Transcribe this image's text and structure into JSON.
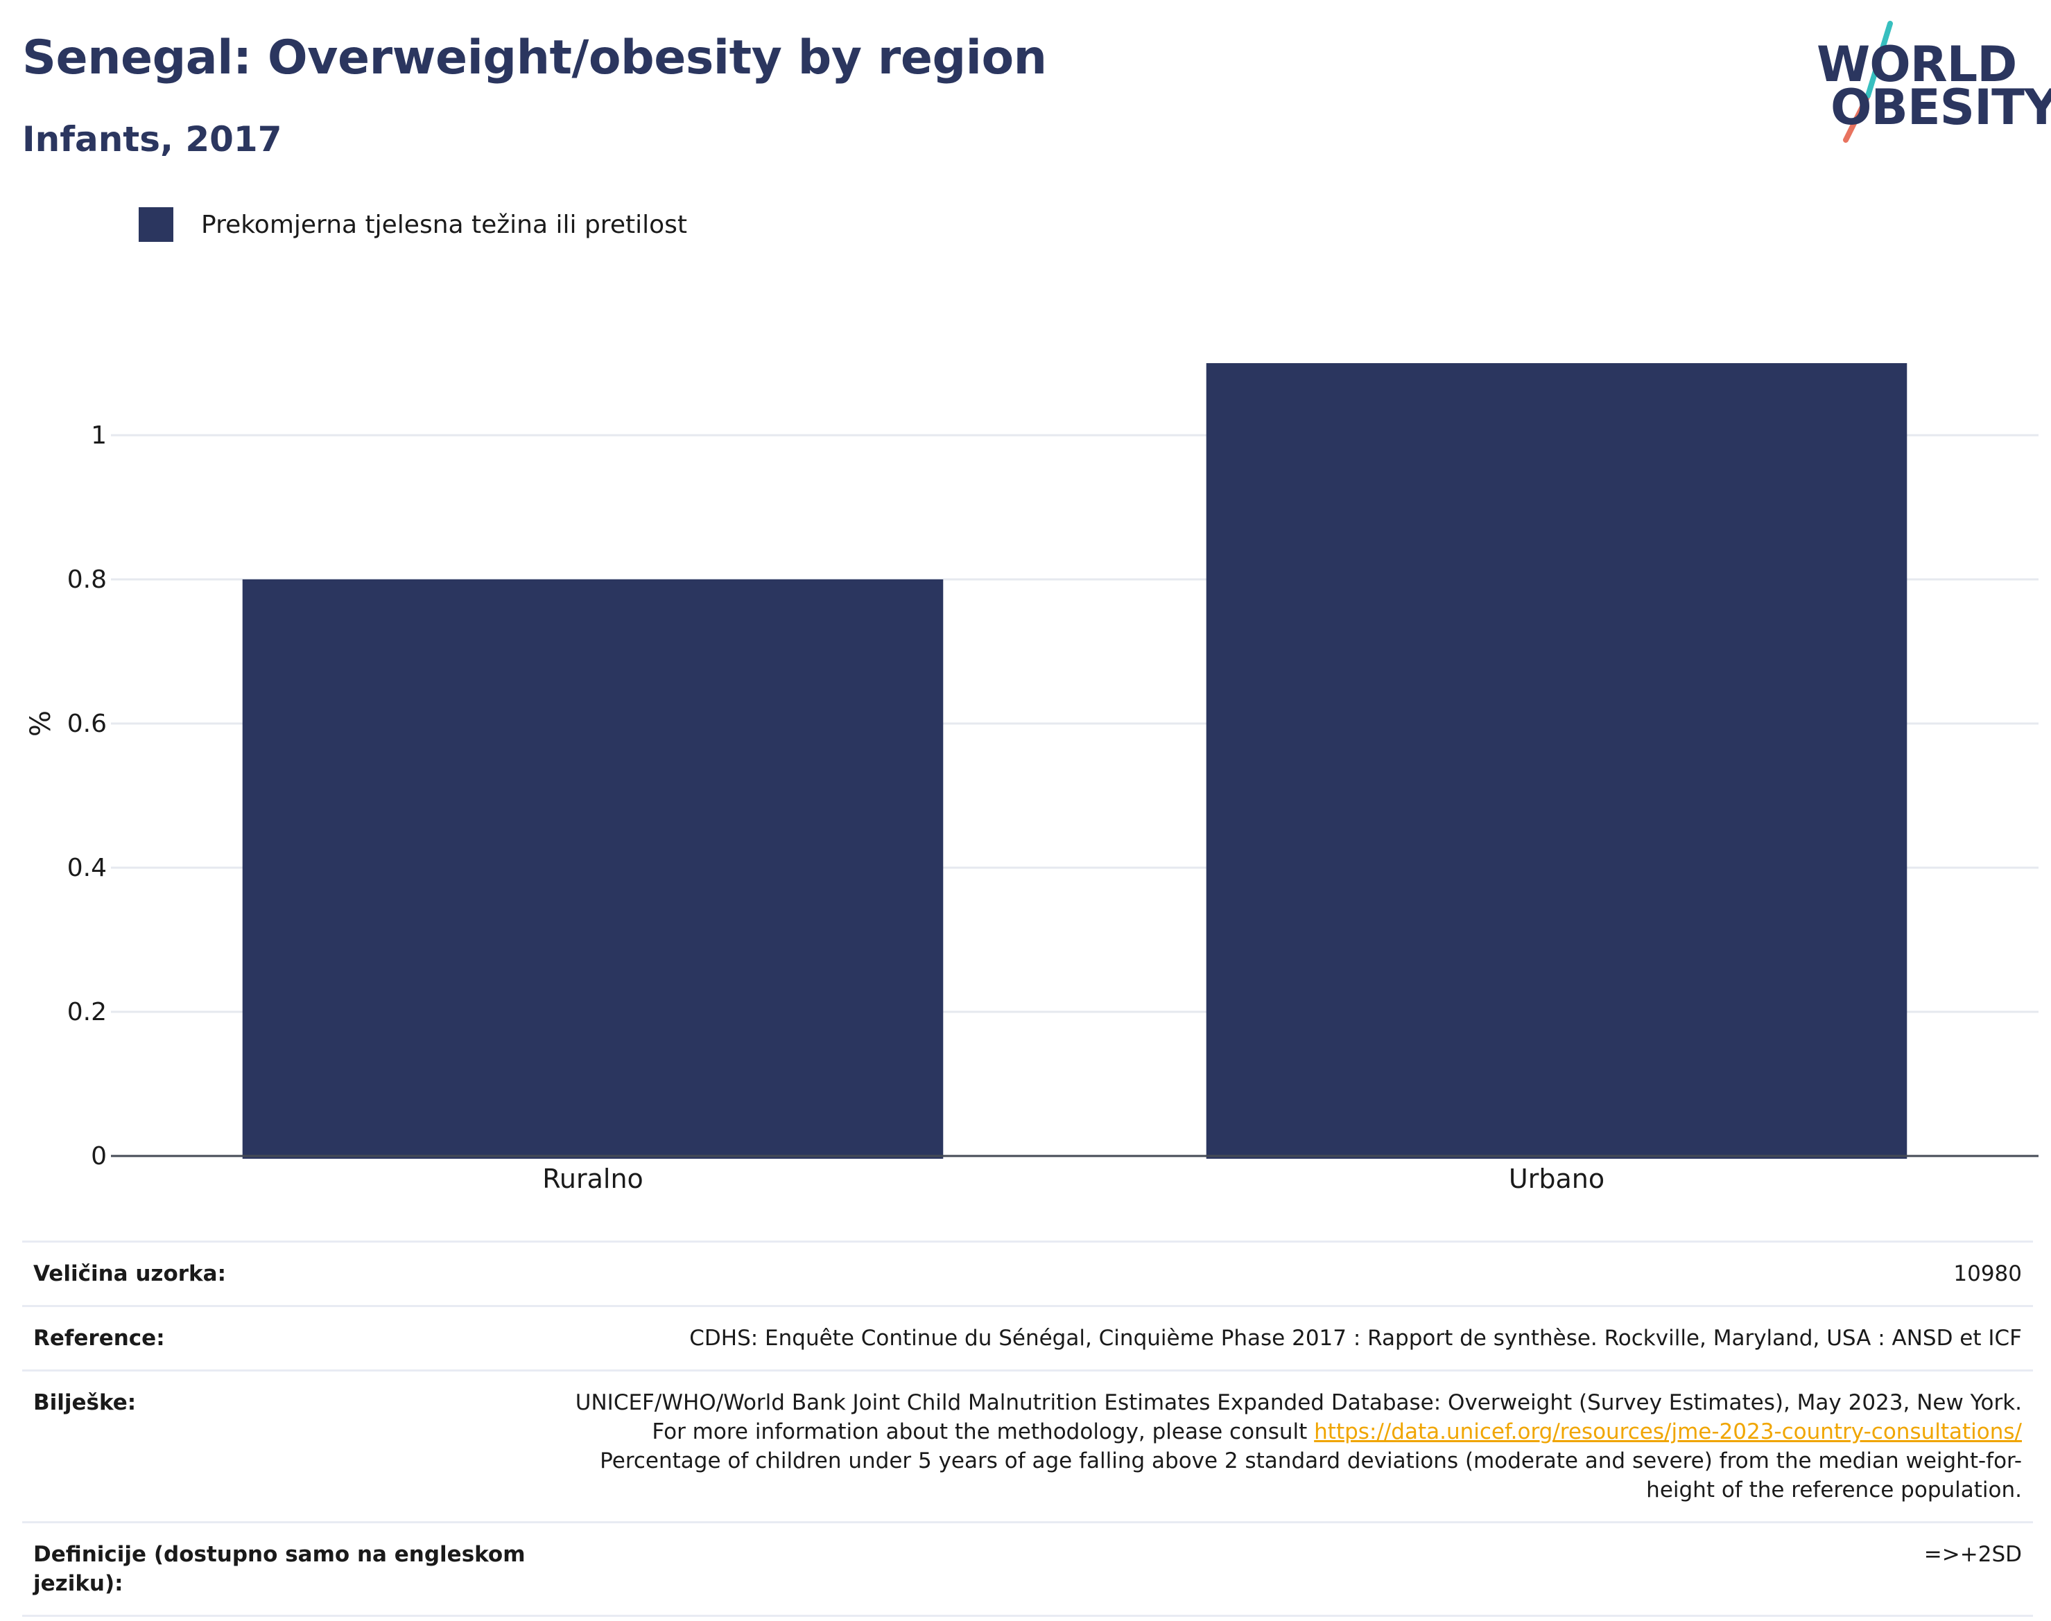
{
  "header": {
    "title": "Senegal: Overweight/obesity by region",
    "subtitle": "Infants, 2017"
  },
  "logo": {
    "line1": "WORLD",
    "line2": "OBESITY"
  },
  "colors": {
    "bar": "#2b365f",
    "title": "#2b365f",
    "link": "#f0a500"
  },
  "chart_data": {
    "type": "bar",
    "categories": [
      "Ruralno",
      "Urbano"
    ],
    "series": [
      {
        "name": "Prekomjerna tjelesna težina ili pretilost",
        "values": [
          0.8,
          1.1
        ]
      }
    ],
    "ylabel": "%",
    "xlabel": "",
    "ylim": [
      0,
      1.2
    ],
    "yticks": [
      0,
      0.2,
      0.4,
      0.6,
      0.8,
      1
    ],
    "grid": true,
    "legend": "top-left"
  },
  "meta": {
    "sample_label": "Veličina uzorka:",
    "sample_value": "10980",
    "reference_label": "Reference:",
    "reference_value": "CDHS: Enquête Continue du Sénégal, Cinquième Phase 2017 : Rapport de synthèse. Rockville, Maryland, USA : ANSD et ICF",
    "notes_label": "Bilješke:",
    "notes_text1": "UNICEF/WHO/World Bank Joint Child Malnutrition Estimates Expanded Database: Overweight (Survey Estimates), May 2023, New York. For more information about the methodology, please consult",
    "notes_link": "https://data.unicef.org/resources/jme-2023-country-consultations/",
    "notes_text2": "Percentage of children under 5 years of age falling above 2 standard deviations (moderate and severe) from the median weight-for-height of the reference population.",
    "definitions_label": "Definicije (dostupno samo na engleskom jeziku):",
    "definitions_value": "=>+2SD"
  }
}
